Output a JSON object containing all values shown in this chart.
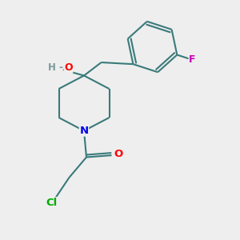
{
  "background_color": "#eeeeee",
  "bond_color": "#3a7a7a",
  "bond_width": 1.5,
  "atom_colors": {
    "N": "#0000ee",
    "O": "#ff0000",
    "F": "#cc00bb",
    "Cl": "#00aa00",
    "H": "#7a9a9a"
  },
  "figsize": [
    3.0,
    3.0
  ],
  "dpi": 100
}
